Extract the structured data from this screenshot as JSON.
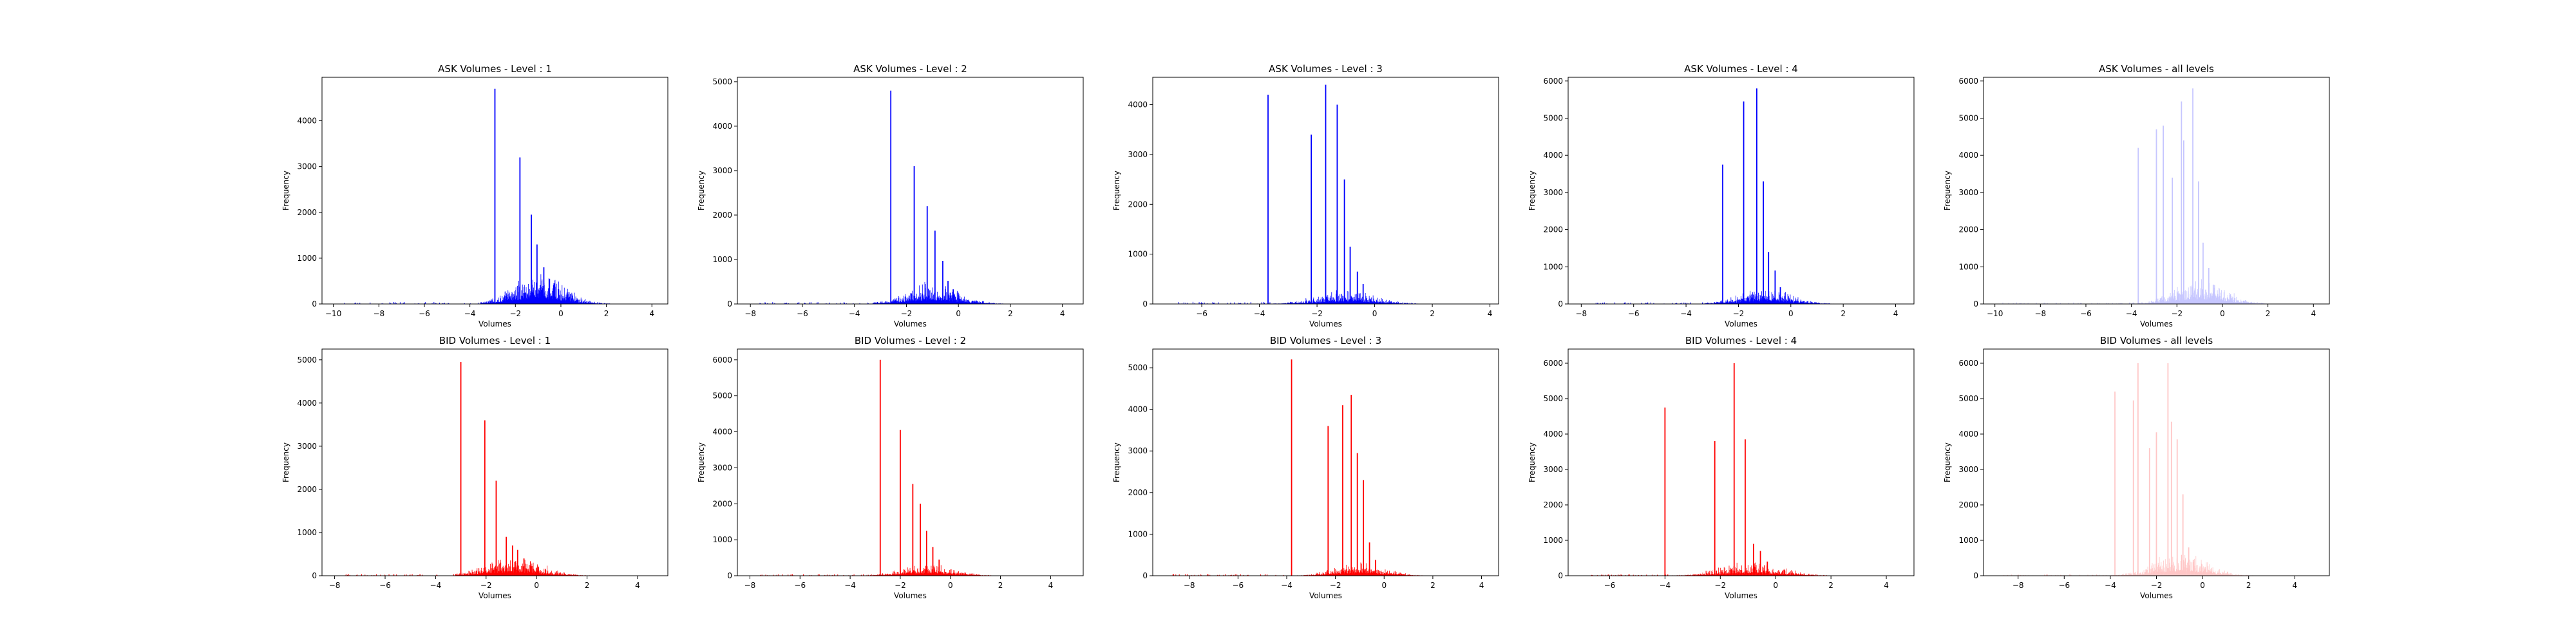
{
  "figure": {
    "chart_data": [
      {
        "type": "histogram",
        "title": "ASK Volumes - Level : 1",
        "xlabel": "Volumes",
        "ylabel": "Frequency",
        "xlim": [
          -10.5,
          4.7
        ],
        "ylim": [
          0,
          4950
        ],
        "xticks": [
          -10,
          -8,
          -6,
          -4,
          -2,
          0,
          2,
          4
        ],
        "yticks": [
          0,
          1000,
          2000,
          3000,
          4000
        ],
        "color": "#0000ff",
        "opacity": 1,
        "spikes": [
          {
            "x": -2.9,
            "y": 4700
          },
          {
            "x": -1.8,
            "y": 3200
          },
          {
            "x": -1.3,
            "y": 1950
          },
          {
            "x": -1.05,
            "y": 1300
          },
          {
            "x": -0.75,
            "y": 800
          },
          {
            "x": -0.5,
            "y": 550
          },
          {
            "x": -0.3,
            "y": 450
          },
          {
            "x": -0.1,
            "y": 320
          }
        ],
        "bulk": {
          "xmin": -3.5,
          "xmax": 2.2,
          "peak": 430,
          "center": -1.0,
          "spread": 1.1
        }
      },
      {
        "type": "histogram",
        "title": "ASK Volumes - Level : 2",
        "xlabel": "Volumes",
        "ylabel": "Frequency",
        "xlim": [
          -8.5,
          4.8
        ],
        "ylim": [
          0,
          5100
        ],
        "xticks": [
          -8,
          -6,
          -4,
          -2,
          0,
          2,
          4
        ],
        "yticks": [
          0,
          1000,
          2000,
          3000,
          4000,
          5000
        ],
        "color": "#0000ff",
        "opacity": 1,
        "spikes": [
          {
            "x": -2.6,
            "y": 4800
          },
          {
            "x": -1.7,
            "y": 3100
          },
          {
            "x": -1.2,
            "y": 2200
          },
          {
            "x": -0.9,
            "y": 1650
          },
          {
            "x": -0.6,
            "y": 970
          },
          {
            "x": -0.4,
            "y": 520
          },
          {
            "x": -0.2,
            "y": 330
          }
        ],
        "bulk": {
          "xmin": -3.3,
          "xmax": 2.0,
          "peak": 300,
          "center": -1.0,
          "spread": 1.0
        }
      },
      {
        "type": "histogram",
        "title": "ASK Volumes - Level : 3",
        "xlabel": "Volumes",
        "ylabel": "Frequency",
        "xlim": [
          -7.7,
          4.3
        ],
        "ylim": [
          0,
          4550
        ],
        "xticks": [
          -6,
          -4,
          -2,
          0,
          2,
          4
        ],
        "yticks": [
          0,
          1000,
          2000,
          3000,
          4000
        ],
        "color": "#0000ff",
        "opacity": 1,
        "spikes": [
          {
            "x": -3.7,
            "y": 4200
          },
          {
            "x": -2.2,
            "y": 3400
          },
          {
            "x": -1.7,
            "y": 4400
          },
          {
            "x": -1.3,
            "y": 4000
          },
          {
            "x": -1.05,
            "y": 2500
          },
          {
            "x": -0.85,
            "y": 1150
          },
          {
            "x": -0.6,
            "y": 650
          },
          {
            "x": -0.4,
            "y": 400
          }
        ],
        "bulk": {
          "xmin": -3.8,
          "xmax": 2.0,
          "peak": 180,
          "center": -1.0,
          "spread": 1.0
        }
      },
      {
        "type": "histogram",
        "title": "ASK Volumes - Level : 4",
        "xlabel": "Volumes",
        "ylabel": "Frequency",
        "xlim": [
          -8.5,
          4.7
        ],
        "ylim": [
          0,
          6100
        ],
        "xticks": [
          -8,
          -6,
          -4,
          -2,
          0,
          2,
          4
        ],
        "yticks": [
          0,
          1000,
          2000,
          3000,
          4000,
          5000,
          6000
        ],
        "color": "#0000ff",
        "opacity": 1,
        "spikes": [
          {
            "x": -2.6,
            "y": 3750
          },
          {
            "x": -1.8,
            "y": 5450
          },
          {
            "x": -1.3,
            "y": 5800
          },
          {
            "x": -1.05,
            "y": 3300
          },
          {
            "x": -0.85,
            "y": 1400
          },
          {
            "x": -0.6,
            "y": 900
          },
          {
            "x": -0.4,
            "y": 450
          }
        ],
        "bulk": {
          "xmin": -3.3,
          "xmax": 2.2,
          "peak": 260,
          "center": -1.0,
          "spread": 1.0
        }
      },
      {
        "type": "histogram",
        "title": "ASK Volumes - all levels",
        "xlabel": "Volumes",
        "ylabel": "Frequency",
        "xlim": [
          -10.5,
          4.7
        ],
        "ylim": [
          0,
          6100
        ],
        "xticks": [
          -10,
          -8,
          -6,
          -4,
          -2,
          0,
          2,
          4
        ],
        "yticks": [
          0,
          1000,
          2000,
          3000,
          4000,
          5000,
          6000
        ],
        "color": "#0000ff",
        "opacity": 0.22,
        "spikes": [
          {
            "x": -3.7,
            "y": 4200
          },
          {
            "x": -2.9,
            "y": 4700
          },
          {
            "x": -2.6,
            "y": 4800
          },
          {
            "x": -2.2,
            "y": 3400
          },
          {
            "x": -1.8,
            "y": 5450
          },
          {
            "x": -1.7,
            "y": 4400
          },
          {
            "x": -1.3,
            "y": 5800
          },
          {
            "x": -1.05,
            "y": 3300
          },
          {
            "x": -0.85,
            "y": 1650
          },
          {
            "x": -0.6,
            "y": 970
          },
          {
            "x": -0.4,
            "y": 520
          }
        ],
        "bulk": {
          "xmin": -3.8,
          "xmax": 2.2,
          "peak": 450,
          "center": -1.0,
          "spread": 1.1
        }
      },
      {
        "type": "histogram",
        "title": "BID Volumes - Level : 1",
        "xlabel": "Volumes",
        "ylabel": "Frequency",
        "xlim": [
          -8.5,
          5.2
        ],
        "ylim": [
          0,
          5250
        ],
        "xticks": [
          -8,
          -6,
          -4,
          -2,
          0,
          2,
          4
        ],
        "yticks": [
          0,
          1000,
          2000,
          3000,
          4000,
          5000
        ],
        "color": "#ff0000",
        "opacity": 1,
        "spikes": [
          {
            "x": -3.0,
            "y": 4950
          },
          {
            "x": -2.05,
            "y": 3600
          },
          {
            "x": -1.6,
            "y": 2200
          },
          {
            "x": -1.2,
            "y": 900
          },
          {
            "x": -0.95,
            "y": 700
          },
          {
            "x": -0.75,
            "y": 600
          },
          {
            "x": -0.5,
            "y": 400
          }
        ],
        "bulk": {
          "xmin": -3.2,
          "xmax": 2.5,
          "peak": 280,
          "center": -0.9,
          "spread": 1.1
        }
      },
      {
        "type": "histogram",
        "title": "BID Volumes - Level : 2",
        "xlabel": "Volumes",
        "ylabel": "Frequency",
        "xlim": [
          -8.5,
          5.3
        ],
        "ylim": [
          0,
          6300
        ],
        "xticks": [
          -8,
          -6,
          -4,
          -2,
          0,
          2,
          4
        ],
        "yticks": [
          0,
          1000,
          2000,
          3000,
          4000,
          5000,
          6000
        ],
        "color": "#ff0000",
        "opacity": 1,
        "spikes": [
          {
            "x": -2.8,
            "y": 6000
          },
          {
            "x": -2.0,
            "y": 4050
          },
          {
            "x": -1.5,
            "y": 2550
          },
          {
            "x": -1.2,
            "y": 2000
          },
          {
            "x": -0.95,
            "y": 1250
          },
          {
            "x": -0.7,
            "y": 800
          },
          {
            "x": -0.45,
            "y": 450
          }
        ],
        "bulk": {
          "xmin": -3.2,
          "xmax": 2.5,
          "peak": 220,
          "center": -0.9,
          "spread": 1.0
        }
      },
      {
        "type": "histogram",
        "title": "BID Volumes - Level : 3",
        "xlabel": "Volumes",
        "ylabel": "Frequency",
        "xlim": [
          -9.5,
          4.7
        ],
        "ylim": [
          0,
          5450
        ],
        "xticks": [
          -8,
          -6,
          -4,
          -2,
          0,
          2,
          4
        ],
        "yticks": [
          0,
          1000,
          2000,
          3000,
          4000,
          5000
        ],
        "color": "#ff0000",
        "opacity": 1,
        "spikes": [
          {
            "x": -3.8,
            "y": 5200
          },
          {
            "x": -2.3,
            "y": 3600
          },
          {
            "x": -1.7,
            "y": 4100
          },
          {
            "x": -1.35,
            "y": 4350
          },
          {
            "x": -1.1,
            "y": 2950
          },
          {
            "x": -0.85,
            "y": 2300
          },
          {
            "x": -0.6,
            "y": 800
          },
          {
            "x": -0.35,
            "y": 380
          }
        ],
        "bulk": {
          "xmin": -3.9,
          "xmax": 2.1,
          "peak": 220,
          "center": -1.0,
          "spread": 1.0
        }
      },
      {
        "type": "histogram",
        "title": "BID Volumes - Level : 4",
        "xlabel": "Volumes",
        "ylabel": "Frequency",
        "xlim": [
          -7.5,
          5.0
        ],
        "ylim": [
          0,
          6400
        ],
        "xticks": [
          -6,
          -4,
          -2,
          0,
          2,
          4
        ],
        "yticks": [
          0,
          1000,
          2000,
          3000,
          4000,
          5000,
          6000
        ],
        "color": "#ff0000",
        "opacity": 1,
        "spikes": [
          {
            "x": -4.0,
            "y": 4750
          },
          {
            "x": -2.2,
            "y": 3800
          },
          {
            "x": -1.5,
            "y": 6000
          },
          {
            "x": -1.1,
            "y": 3850
          },
          {
            "x": -0.8,
            "y": 900
          },
          {
            "x": -0.55,
            "y": 700
          },
          {
            "x": -0.3,
            "y": 400
          }
        ],
        "bulk": {
          "xmin": -4.1,
          "xmax": 2.6,
          "peak": 260,
          "center": -0.9,
          "spread": 1.1
        }
      },
      {
        "type": "histogram",
        "title": "BID Volumes - all levels",
        "xlabel": "Volumes",
        "ylabel": "Frequency",
        "xlim": [
          -9.5,
          5.5
        ],
        "ylim": [
          0,
          6400
        ],
        "xticks": [
          -8,
          -6,
          -4,
          -2,
          0,
          2,
          4
        ],
        "yticks": [
          0,
          1000,
          2000,
          3000,
          4000,
          5000,
          6000
        ],
        "color": "#ff0000",
        "opacity": 0.22,
        "spikes": [
          {
            "x": -3.8,
            "y": 5200
          },
          {
            "x": -3.0,
            "y": 4950
          },
          {
            "x": -2.8,
            "y": 6000
          },
          {
            "x": -2.3,
            "y": 3600
          },
          {
            "x": -2.0,
            "y": 4050
          },
          {
            "x": -1.5,
            "y": 6000
          },
          {
            "x": -1.35,
            "y": 4350
          },
          {
            "x": -1.1,
            "y": 3850
          },
          {
            "x": -0.85,
            "y": 2300
          },
          {
            "x": -0.6,
            "y": 800
          },
          {
            "x": -0.4,
            "y": 450
          }
        ],
        "bulk": {
          "xmin": -4.1,
          "xmax": 2.6,
          "peak": 450,
          "center": -1.0,
          "spread": 1.1
        }
      }
    ]
  }
}
